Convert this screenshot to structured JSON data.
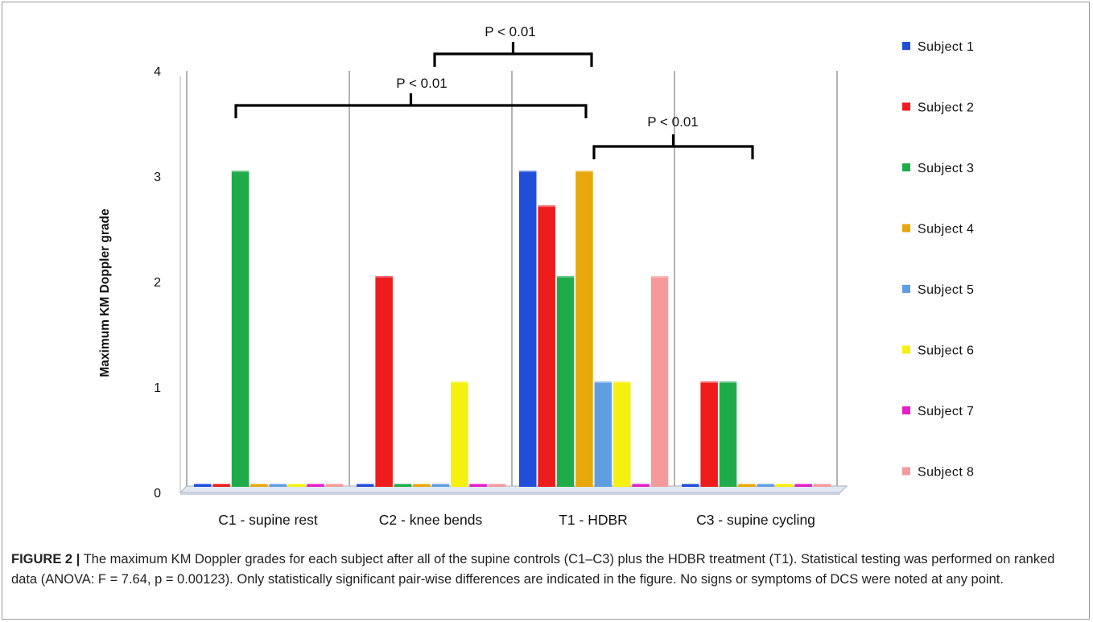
{
  "chart_data": {
    "type": "bar",
    "title": "",
    "xlabel": "",
    "ylabel": "Maximum KM Doppler grade",
    "ylim": [
      0,
      4
    ],
    "yticks": [
      0,
      1,
      2,
      3,
      4
    ],
    "grid": false,
    "legend_position": "right",
    "categories": [
      "C1 - supine rest",
      "C2 - knee bends",
      "T1 - HDBR",
      "C3 - supine cycling"
    ],
    "series": [
      {
        "name": "Subject 1",
        "color": "#1f4fd8",
        "values": [
          0,
          0,
          3,
          0
        ]
      },
      {
        "name": "Subject 2",
        "color": "#ee1c1c",
        "values": [
          0,
          2,
          2.67,
          1
        ]
      },
      {
        "name": "Subject 3",
        "color": "#1fab4a",
        "values": [
          3,
          0,
          2,
          1
        ]
      },
      {
        "name": "Subject 4",
        "color": "#e8a80c",
        "values": [
          0,
          0,
          3,
          0
        ]
      },
      {
        "name": "Subject 5",
        "color": "#5f9ee0",
        "values": [
          0,
          0,
          1,
          0
        ]
      },
      {
        "name": "Subject 6",
        "color": "#f5f00e",
        "values": [
          0,
          1,
          1,
          0
        ]
      },
      {
        "name": "Subject 7",
        "color": "#e61fc8",
        "values": [
          0,
          0,
          0,
          0
        ]
      },
      {
        "name": "Subject 8",
        "color": "#f59a9a",
        "values": [
          0,
          0,
          2,
          0
        ]
      }
    ],
    "annotations": [
      {
        "label": "P < 0.01",
        "from": "C2 - knee bends",
        "to": "T1 - HDBR"
      },
      {
        "label": "P < 0.01",
        "from": "C1 - supine rest",
        "to": "T1 - HDBR"
      },
      {
        "label": "P < 0.01",
        "from": "T1 - HDBR",
        "to": "C3 - supine cycling"
      }
    ]
  },
  "caption": {
    "label": "FIGURE 2 |",
    "text": " The maximum KM Doppler grades for each subject after all of the supine controls (C1–C3) plus the HDBR treatment (T1). Statistical testing was performed on ranked data (ANOVA: F = 7.64, p = 0.00123). Only statistically significant pair-wise differences are indicated in the figure. No signs or symptoms of DCS were noted at any point."
  }
}
